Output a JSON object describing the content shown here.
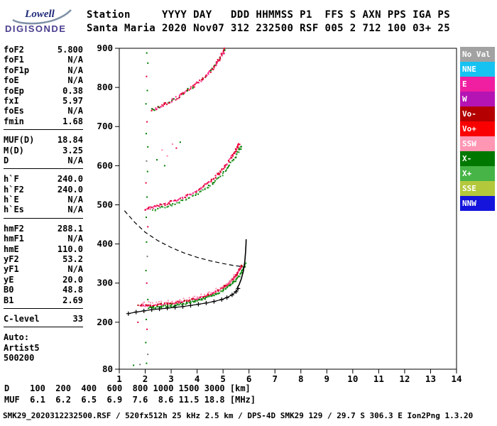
{
  "logo": {
    "name": "Lowell",
    "product": "DIGISONDE"
  },
  "header": {
    "line1": "Station     YYYY DAY   DDD HHMMSS P1  FFS S AXN PPS IGA PS",
    "line2": "Santa Maria 2020 Nov07 312 232500 RSF 005 2 712 100 03+ 25",
    "station": "Santa Maria",
    "fields": {
      "YYYY": "2020",
      "DAY": "Nov07",
      "DDD": "312",
      "HHMMSS": "232500",
      "P1": "RSF",
      "FFS": "005",
      "S": "2",
      "AXN": "712",
      "PPS": "100",
      "IGA": "03+",
      "PS": "25"
    }
  },
  "parameters": {
    "groups": [
      {
        "rows": [
          [
            "foF2",
            "5.800"
          ],
          [
            "foF1",
            "N/A"
          ],
          [
            "foF1p",
            "N/A"
          ],
          [
            "foE",
            "N/A"
          ],
          [
            "foEp",
            "0.38"
          ],
          [
            "fxI",
            "5.97"
          ],
          [
            "foEs",
            "N/A"
          ],
          [
            "fmin",
            "1.68"
          ]
        ]
      },
      {
        "rows": [
          [
            "MUF(D)",
            "18.84"
          ],
          [
            "M(D)",
            "3.25"
          ],
          [
            "D",
            "N/A"
          ]
        ]
      },
      {
        "rows": [
          [
            "h`F",
            "240.0"
          ],
          [
            "h`F2",
            "240.0"
          ],
          [
            "h`E",
            "N/A"
          ],
          [
            "h`Es",
            "N/A"
          ]
        ]
      },
      {
        "rows": [
          [
            "hmF2",
            "288.1"
          ],
          [
            "hmF1",
            "N/A"
          ],
          [
            "hmE",
            "110.0"
          ],
          [
            "yF2",
            "53.2"
          ],
          [
            "yF1",
            "N/A"
          ],
          [
            "yE",
            "20.0"
          ],
          [
            "B0",
            "48.8"
          ],
          [
            "B1",
            "2.69"
          ]
        ]
      },
      {
        "rows": [
          [
            "C-level",
            "33"
          ]
        ]
      }
    ],
    "footer": [
      "Auto:",
      "Artist5",
      "500200"
    ]
  },
  "legend": {
    "entries": [
      {
        "label": "No Val",
        "color": "#a2a2a2"
      },
      {
        "label": "NNE",
        "color": "#16c2f2"
      },
      {
        "label": "E",
        "color": "#f01ea0"
      },
      {
        "label": "W",
        "color": "#b414b4"
      },
      {
        "label": "Vo-",
        "color": "#b40000"
      },
      {
        "label": "Vo+",
        "color": "#fa0000"
      },
      {
        "label": "SSW",
        "color": "#ff96b4"
      },
      {
        "label": "X-",
        "color": "#007800"
      },
      {
        "label": "X+",
        "color": "#46b446"
      },
      {
        "label": "SSE",
        "color": "#b4c83c"
      },
      {
        "label": "NNW",
        "color": "#1414dc"
      }
    ]
  },
  "chart_data": {
    "type": "scatter",
    "title": "Ionogram virtual height vs frequency",
    "xlim": [
      1,
      14
    ],
    "ylim": [
      80,
      900
    ],
    "x_ticks": [
      1,
      2,
      3,
      4,
      5,
      6,
      7,
      8,
      9,
      10,
      11,
      12,
      13,
      14
    ],
    "y_ticks": [
      900,
      800,
      700,
      600,
      500,
      400,
      300,
      200,
      80
    ],
    "palette": {
      "g": "#007d00",
      "r": "#e4003c",
      "p": "#ff7fae",
      "k": "#7a7a7a",
      "b": "#1414dc"
    },
    "echo_traces": [
      {
        "name": "F-trace o-mode",
        "colors": [
          "#f2003c",
          "#d80030",
          "#ff2d8e",
          "#b20000"
        ],
        "jitter_f": 0.06,
        "jitter_h": 5,
        "density": 150,
        "path": [
          [
            1.75,
            243
          ],
          [
            2.2,
            243
          ],
          [
            2.7,
            246
          ],
          [
            3.2,
            250
          ],
          [
            3.7,
            256
          ],
          [
            4.2,
            264
          ],
          [
            4.6,
            274
          ],
          [
            5.0,
            288
          ],
          [
            5.25,
            301
          ],
          [
            5.45,
            315
          ],
          [
            5.6,
            330
          ],
          [
            5.72,
            346
          ]
        ]
      },
      {
        "name": "F-trace x-mode",
        "colors": [
          "#007d00",
          "#2a9d2a"
        ],
        "jitter_f": 0.06,
        "jitter_h": 5,
        "density": 120,
        "path": [
          [
            2.15,
            237
          ],
          [
            2.6,
            239
          ],
          [
            3.1,
            243
          ],
          [
            3.55,
            248
          ],
          [
            4.0,
            255
          ],
          [
            4.4,
            263
          ],
          [
            4.8,
            274
          ],
          [
            5.15,
            288
          ],
          [
            5.45,
            305
          ],
          [
            5.7,
            327
          ],
          [
            5.88,
            350
          ]
        ]
      },
      {
        "name": "F-trace spread",
        "colors": [
          "#ff8fb0"
        ],
        "jitter_f": 0.1,
        "jitter_h": 8,
        "density": 40,
        "path": [
          [
            1.9,
            248
          ],
          [
            2.6,
            251
          ],
          [
            3.3,
            256
          ],
          [
            4.0,
            264
          ],
          [
            4.7,
            279
          ],
          [
            5.2,
            299
          ],
          [
            5.5,
            320
          ]
        ]
      },
      {
        "name": "second-hop o-mode",
        "colors": [
          "#f2003c",
          "#ff2d8e",
          "#d80030"
        ],
        "jitter_f": 0.07,
        "jitter_h": 6,
        "density": 120,
        "path": [
          [
            2.0,
            489
          ],
          [
            2.4,
            495
          ],
          [
            2.9,
            505
          ],
          [
            3.4,
            517
          ],
          [
            3.9,
            532
          ],
          [
            4.3,
            549
          ],
          [
            4.7,
            571
          ],
          [
            5.0,
            592
          ],
          [
            5.3,
            618
          ],
          [
            5.5,
            641
          ],
          [
            5.62,
            655
          ]
        ]
      },
      {
        "name": "second-hop x-mode",
        "colors": [
          "#007d00",
          "#2a9d2a"
        ],
        "jitter_f": 0.07,
        "jitter_h": 6,
        "density": 70,
        "path": [
          [
            2.3,
            487
          ],
          [
            2.8,
            496
          ],
          [
            3.3,
            506
          ],
          [
            3.8,
            520
          ],
          [
            4.25,
            537
          ],
          [
            4.65,
            557
          ],
          [
            5.0,
            580
          ],
          [
            5.3,
            605
          ],
          [
            5.55,
            632
          ],
          [
            5.7,
            650
          ]
        ]
      },
      {
        "name": "third-hop",
        "colors": [
          "#f2003c",
          "#ff2d8e",
          "#007d00",
          "#d80030"
        ],
        "jitter_f": 0.08,
        "jitter_h": 7,
        "density": 120,
        "path": [
          [
            2.25,
            741
          ],
          [
            2.6,
            751
          ],
          [
            3.0,
            765
          ],
          [
            3.4,
            781
          ],
          [
            3.8,
            799
          ],
          [
            4.2,
            820
          ],
          [
            4.5,
            841
          ],
          [
            4.75,
            862
          ],
          [
            4.95,
            882
          ],
          [
            5.08,
            897
          ]
        ]
      }
    ],
    "profile_lines": [
      {
        "name": "transmission-curve",
        "style": "dashed",
        "path": [
          [
            1.2,
            485
          ],
          [
            1.6,
            455
          ],
          [
            2.0,
            430
          ],
          [
            2.5,
            408
          ],
          [
            3.0,
            391
          ],
          [
            3.5,
            377
          ],
          [
            4.0,
            366
          ],
          [
            4.5,
            357
          ],
          [
            5.0,
            350
          ],
          [
            5.4,
            345
          ],
          [
            5.85,
            341
          ]
        ]
      },
      {
        "name": "true-height-profile-top",
        "style": "solid",
        "path": [
          [
            5.55,
            288
          ],
          [
            5.62,
            296
          ],
          [
            5.7,
            310
          ],
          [
            5.78,
            330
          ],
          [
            5.84,
            355
          ],
          [
            5.87,
            380
          ],
          [
            5.885,
            400
          ],
          [
            5.89,
            412
          ]
        ]
      },
      {
        "name": "true-height-profile-bottom",
        "style": "plus",
        "path": [
          [
            1.35,
            222
          ],
          [
            1.65,
            226
          ],
          [
            1.95,
            229
          ],
          [
            2.25,
            232
          ],
          [
            2.55,
            234
          ],
          [
            2.85,
            236
          ],
          [
            3.15,
            238
          ],
          [
            3.45,
            240
          ],
          [
            3.75,
            243
          ],
          [
            4.05,
            246
          ],
          [
            4.35,
            249
          ],
          [
            4.65,
            253
          ],
          [
            4.95,
            258
          ],
          [
            5.15,
            263
          ],
          [
            5.35,
            270
          ],
          [
            5.5,
            278
          ],
          [
            5.58,
            286
          ]
        ]
      }
    ],
    "noise_points": [
      [
        1.55,
        90,
        "g"
      ],
      [
        1.8,
        92,
        "k"
      ],
      [
        2.05,
        95,
        "g"
      ],
      [
        2.1,
        118,
        "k"
      ],
      [
        2.02,
        148,
        "g"
      ],
      [
        2.07,
        182,
        "r"
      ],
      [
        1.72,
        200,
        "r"
      ],
      [
        2.04,
        207,
        "g"
      ],
      [
        2.1,
        258,
        "g"
      ],
      [
        2.06,
        300,
        "r"
      ],
      [
        2.03,
        332,
        "g"
      ],
      [
        2.08,
        368,
        "k"
      ],
      [
        2.05,
        405,
        "g"
      ],
      [
        2.1,
        444,
        "r"
      ],
      [
        2.04,
        468,
        "g"
      ],
      [
        2.07,
        520,
        "g"
      ],
      [
        2.03,
        556,
        "r"
      ],
      [
        2.09,
        585,
        "g"
      ],
      [
        2.05,
        612,
        "k"
      ],
      [
        2.1,
        648,
        "g"
      ],
      [
        2.04,
        682,
        "g"
      ],
      [
        2.07,
        712,
        "r"
      ],
      [
        2.03,
        758,
        "g"
      ],
      [
        2.08,
        792,
        "g"
      ],
      [
        2.05,
        828,
        "r"
      ],
      [
        2.1,
        862,
        "g"
      ],
      [
        2.06,
        888,
        "g"
      ],
      [
        2.65,
        640,
        "p"
      ],
      [
        2.85,
        625,
        "p"
      ],
      [
        3.05,
        655,
        "p"
      ],
      [
        2.75,
        600,
        "g"
      ],
      [
        3.2,
        645,
        "r"
      ],
      [
        3.35,
        660,
        "g"
      ],
      [
        2.45,
        615,
        "g"
      ]
    ]
  },
  "dmuf_table": {
    "rows": [
      {
        "label": "D",
        "values": [
          "100",
          "200",
          "400",
          "600",
          "800",
          "1000",
          "1500",
          "3000"
        ],
        "unit": "[km]"
      },
      {
        "label": "MUF",
        "values": [
          "6.1",
          "6.2",
          "6.5",
          "6.9",
          "7.6",
          "8.6",
          "11.5",
          "18.8"
        ],
        "unit": "[MHz]"
      }
    ]
  },
  "status_line": "SMK29_2020312232500.RSF / 520fx512h 25 kHz 2.5 km / DPS-4D SMK29 129 / 29.7 S 306.3 E Ion2Png 1.3.20"
}
